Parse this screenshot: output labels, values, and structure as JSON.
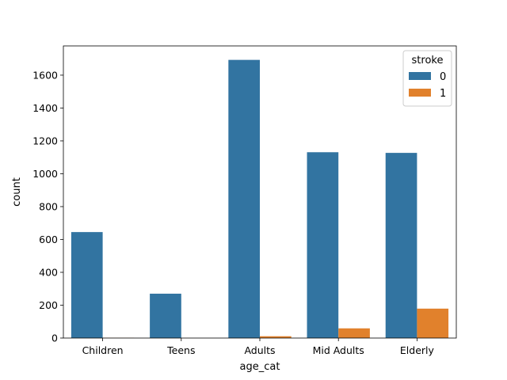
{
  "chart_data": {
    "type": "bar",
    "title": "",
    "xlabel": "age_cat",
    "ylabel": "count",
    "categories": [
      "Children",
      "Teens",
      "Adults",
      "Mid Adults",
      "Elderly"
    ],
    "series": [
      {
        "name": "0",
        "color": "#3274a1",
        "values": [
          645,
          270,
          1693,
          1131,
          1127
        ]
      },
      {
        "name": "1",
        "color": "#e1812c",
        "values": [
          1,
          0,
          11,
          59,
          179
        ]
      }
    ],
    "ylim": [
      0,
      1778
    ],
    "yticks": [
      0,
      200,
      400,
      600,
      800,
      1000,
      1200,
      1400,
      1600
    ],
    "legend": {
      "title": "stroke",
      "position": "top-right"
    },
    "grid": false
  }
}
